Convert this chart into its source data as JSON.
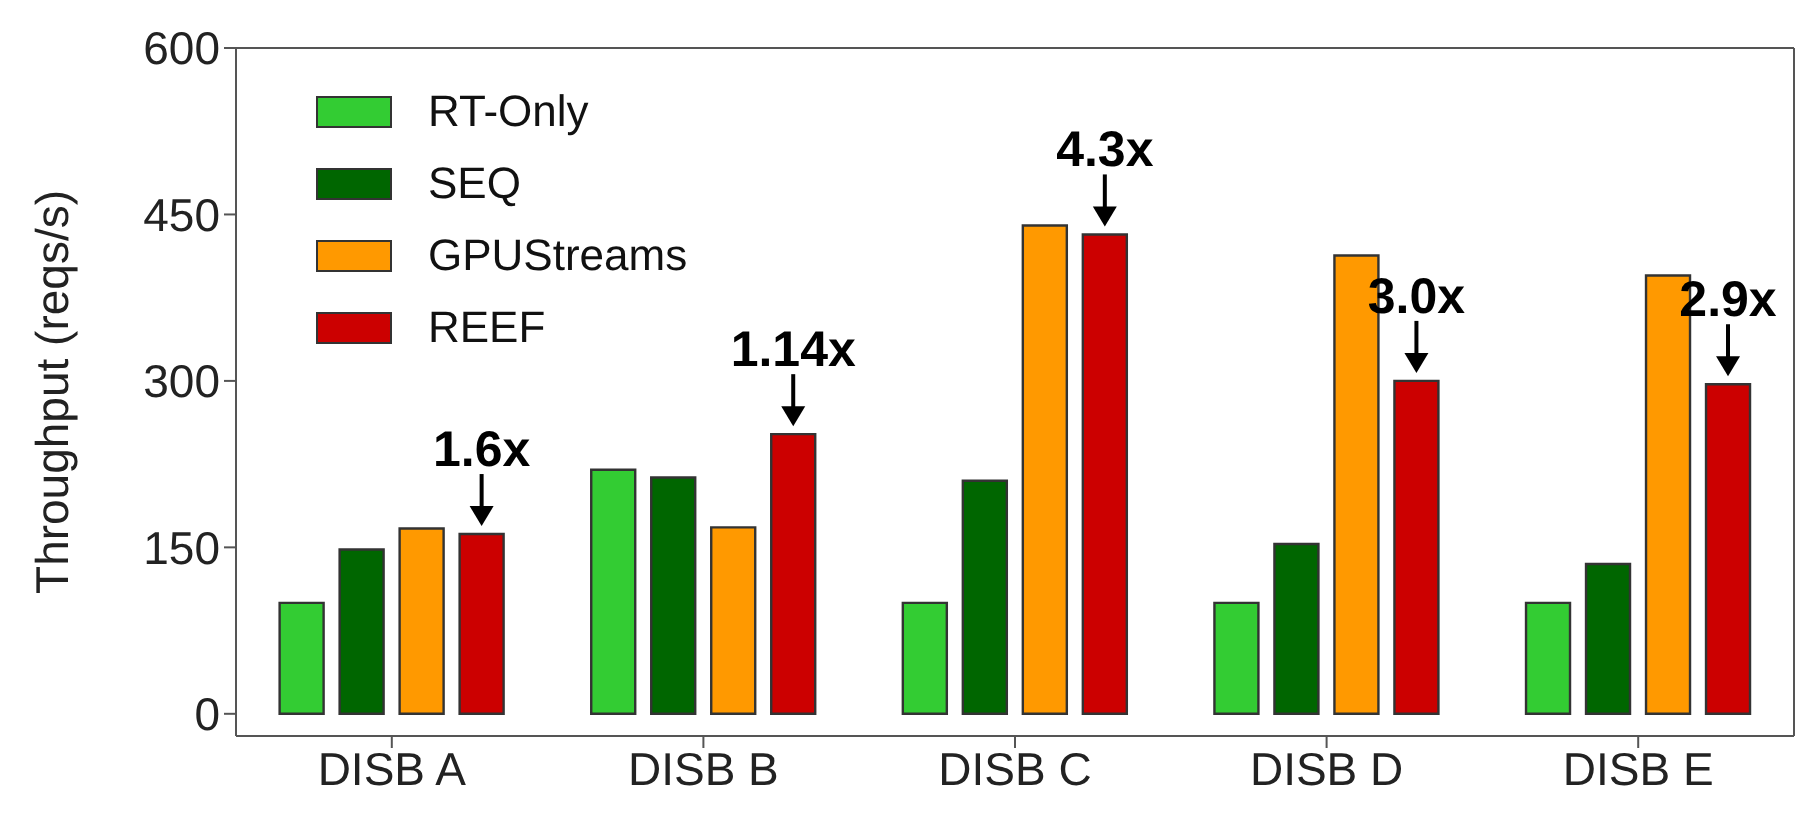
{
  "chart_data": {
    "type": "bar",
    "ylabel": "Throughput (reqs/s)",
    "categories": [
      "DISB A",
      "DISB B",
      "DISB C",
      "DISB D",
      "DISB E"
    ],
    "series": [
      {
        "name": "RT-Only",
        "color": "#33cc33",
        "values": [
          100,
          220,
          100,
          100,
          100
        ]
      },
      {
        "name": "SEQ",
        "color": "#006600",
        "values": [
          148,
          213,
          210,
          153,
          135
        ]
      },
      {
        "name": "GPUStreams",
        "color": "#ff9900",
        "values": [
          167,
          168,
          440,
          413,
          395
        ]
      },
      {
        "name": "REEF",
        "color": "#cc0000",
        "values": [
          162,
          252,
          432,
          300,
          297
        ]
      }
    ],
    "ylim": [
      -20,
      600
    ],
    "yticks": [
      0,
      150,
      300,
      450,
      600
    ],
    "grid": false,
    "legend": "top left",
    "annotations": [
      "1.6x",
      "1.14x",
      "4.3x",
      "3.0x",
      "2.9x"
    ]
  }
}
